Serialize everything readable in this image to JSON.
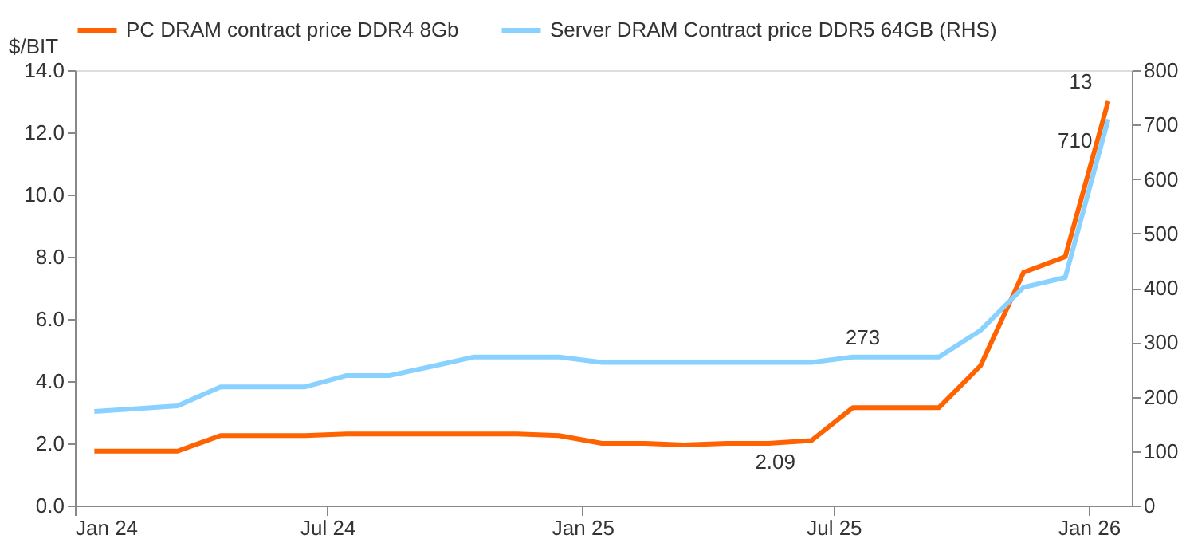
{
  "chart_data": {
    "type": "line",
    "ylabel": "$/BIT",
    "x": [
      "2024-01-15",
      "2024-02-15",
      "2024-03-15",
      "2024-04-15",
      "2024-05-15",
      "2024-06-15",
      "2024-07-15",
      "2024-08-15",
      "2024-09-15",
      "2024-10-15",
      "2024-11-15",
      "2024-12-15",
      "2025-01-15",
      "2025-02-15",
      "2025-03-15",
      "2025-04-15",
      "2025-05-15",
      "2025-06-15",
      "2025-07-15",
      "2025-08-15",
      "2025-09-15",
      "2025-10-15",
      "2025-11-15",
      "2025-12-15",
      "2026-01-15"
    ],
    "series": [
      {
        "name": "PC DRAM contract price DDR4 8Gb",
        "color": "#ff6200",
        "values": [
          1.75,
          1.75,
          1.75,
          2.25,
          2.25,
          2.25,
          2.3,
          2.3,
          2.3,
          2.3,
          2.3,
          2.25,
          2.0,
          2.0,
          1.95,
          2.0,
          2.0,
          2.09,
          3.15,
          3.15,
          3.15,
          4.5,
          7.5,
          8.0,
          13
        ],
        "value_labels": [
          null,
          null,
          null,
          null,
          null,
          null,
          null,
          null,
          null,
          null,
          null,
          null,
          null,
          null,
          null,
          null,
          null,
          "2.09",
          null,
          null,
          null,
          null,
          null,
          null,
          "13"
        ]
      },
      {
        "name": "Server DRAM Contract price DDR5 64GB (RHS)",
        "color": "#89d2ff",
        "axis": "y2",
        "values": [
          173,
          178,
          183,
          218,
          218,
          218,
          239,
          239,
          256,
          273,
          273,
          273,
          263,
          263,
          263,
          263,
          263,
          263,
          273,
          273,
          273,
          322,
          401,
          419,
          710
        ],
        "value_labels": [
          null,
          null,
          null,
          null,
          null,
          null,
          null,
          null,
          null,
          null,
          null,
          null,
          null,
          null,
          null,
          null,
          null,
          null,
          null,
          "273",
          null,
          null,
          null,
          null,
          "710"
        ]
      }
    ],
    "xlim": [
      "2024-01-01",
      "2026-02-01"
    ],
    "xticks": [
      {
        "value": "2024-01-01",
        "label": "Jan 24"
      },
      {
        "value": "2024-07-01",
        "label": "Jul 24"
      },
      {
        "value": "2025-01-01",
        "label": "Jan 25"
      },
      {
        "value": "2025-07-01",
        "label": "Jul 25"
      },
      {
        "value": "2026-01-01",
        "label": "Jan 26"
      }
    ],
    "ylim": [
      0,
      14
    ],
    "yticks": [
      {
        "value": 0,
        "label": "0.0"
      },
      {
        "value": 2,
        "label": "2.0"
      },
      {
        "value": 4,
        "label": "4.0"
      },
      {
        "value": 6,
        "label": "6.0"
      },
      {
        "value": 8,
        "label": "8.0"
      },
      {
        "value": 10,
        "label": "10.0"
      },
      {
        "value": 12,
        "label": "12.0"
      },
      {
        "value": 14,
        "label": "14.0"
      }
    ],
    "y2lim": [
      0,
      800
    ],
    "y2ticks": [
      0,
      100,
      200,
      300,
      400,
      500,
      600,
      700,
      800
    ],
    "legend": "top",
    "grid": false,
    "line_style": "solid",
    "marker": "none"
  }
}
